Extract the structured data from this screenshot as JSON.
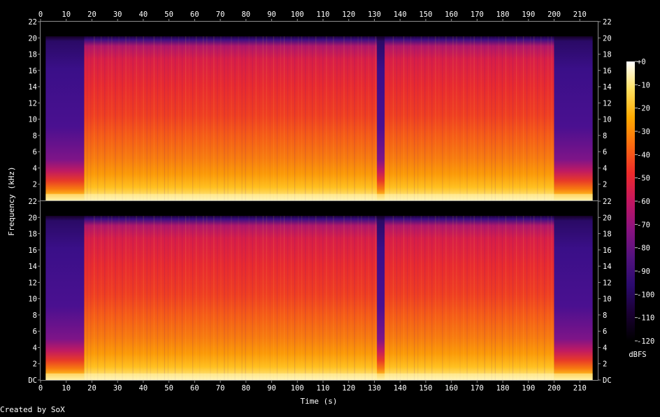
{
  "chart_data": {
    "type": "heatmap",
    "title": "",
    "xlabel": "Time (s)",
    "ylabel": "Frequency (kHz)",
    "xlim": [
      0,
      217
    ],
    "ylim": [
      0,
      22
    ],
    "x_ticks": [
      "0",
      "10",
      "20",
      "30",
      "40",
      "50",
      "60",
      "70",
      "80",
      "90",
      "100",
      "110",
      "120",
      "130",
      "140",
      "150",
      "160",
      "170",
      "180",
      "190",
      "200",
      "210"
    ],
    "x_tick_values": [
      0,
      10,
      20,
      30,
      40,
      50,
      60,
      70,
      80,
      90,
      100,
      110,
      120,
      130,
      140,
      150,
      160,
      170,
      180,
      190,
      200,
      210
    ],
    "channels": [
      {
        "y_ticks": [
          "22",
          "20",
          "18",
          "16",
          "14",
          "12",
          "10",
          "8",
          "6",
          "4",
          "2"
        ],
        "y_tick_values": [
          22,
          20,
          18,
          16,
          14,
          12,
          10,
          8,
          6,
          4,
          2
        ]
      },
      {
        "y_ticks": [
          "22",
          "20",
          "18",
          "16",
          "14",
          "12",
          "10",
          "8",
          "6",
          "4",
          "2",
          "DC"
        ],
        "y_tick_values": [
          22,
          20,
          18,
          16,
          14,
          12,
          10,
          8,
          6,
          4,
          2,
          0
        ]
      }
    ],
    "colorbar": {
      "label": "dBFS",
      "ticks": [
        "+0",
        "-10",
        "-20",
        "-30",
        "-40",
        "-50",
        "-60",
        "-70",
        "-80",
        "-90",
        "-100",
        "-110",
        "-120"
      ],
      "tick_values": [
        0,
        -10,
        -20,
        -30,
        -40,
        -50,
        -60,
        -70,
        -80,
        -90,
        -100,
        -110,
        -120
      ],
      "range": [
        -120,
        0
      ],
      "stops": [
        "#000000",
        "#1a0033",
        "#2b0a6e",
        "#52127e",
        "#8a1280",
        "#c41660",
        "#ee2a2a",
        "#fb6a10",
        "#ffaa00",
        "#ffe060",
        "#ffffff"
      ]
    },
    "segments_s": [
      {
        "start": 2,
        "end": 17,
        "level": "quiet"
      },
      {
        "start": 17,
        "end": 200,
        "level": "loud"
      },
      {
        "start": 131,
        "end": 134,
        "level": "quiet"
      },
      {
        "start": 200,
        "end": 215,
        "level": "quiet"
      }
    ],
    "footer": "Created by SoX"
  }
}
